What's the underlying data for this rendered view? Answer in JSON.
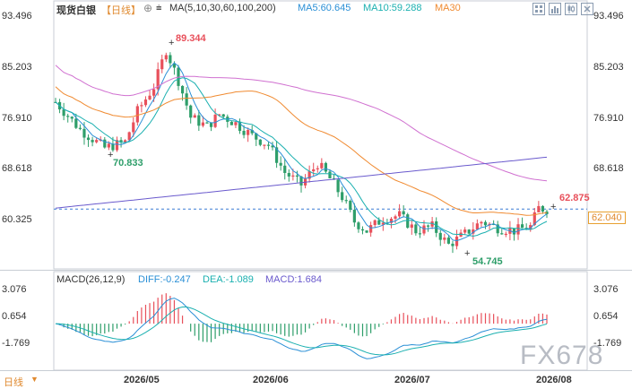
{
  "header": {
    "symbol": "现货白银",
    "period": "【日线】",
    "period_icon": "circle-plus-icon",
    "ma_label": "MA(5,10,30,60,100,200)",
    "ma5": "MA5:60.645",
    "ma10": "MA10:59.288",
    "ma30": "MA30"
  },
  "macd_header": {
    "label": "MACD(26,12,9)",
    "diff": "DIFF:-0.247",
    "dea": "DEA:-1.089",
    "macd": "MACD:1.684"
  },
  "toolbar": {
    "icons": [
      "grid-icon",
      "bar-chart-icon",
      "candlestick-icon",
      "close-icon"
    ]
  },
  "bottom_bar": {
    "period": "日线",
    "dropdown_icon": "caret-down-icon"
  },
  "colors": {
    "up": "#e8505b",
    "down": "#2e9e6a",
    "ma5": "#2a8fd6",
    "ma10": "#1bb0b0",
    "ma30": "#f08a30",
    "ma60": "#d070d0",
    "ma_long": "#6a5acd",
    "price_line": "#e8a030",
    "watermark": "#b8bcc4"
  },
  "chart_data": {
    "type": "candlestick",
    "y_axis_labels": [
      "93.496",
      "85.203",
      "76.910",
      "68.618",
      "60.325"
    ],
    "ylim": [
      56.0,
      93.496
    ],
    "x_axis_labels": [
      "2026/05",
      "2026/06",
      "2026/07",
      "2026/08"
    ],
    "high_annotation": "89.344",
    "low_annotation_1": "70.833",
    "low_annotation_2": "54.745",
    "last_high_annotation": "62.875",
    "current_price_label": "62.040",
    "current_price": 62.04,
    "macd": {
      "y_axis_labels": [
        "3.076",
        "0.654",
        "-1.769"
      ],
      "ylim": [
        -5.2,
        4.6
      ]
    },
    "watermark": "FX678"
  }
}
